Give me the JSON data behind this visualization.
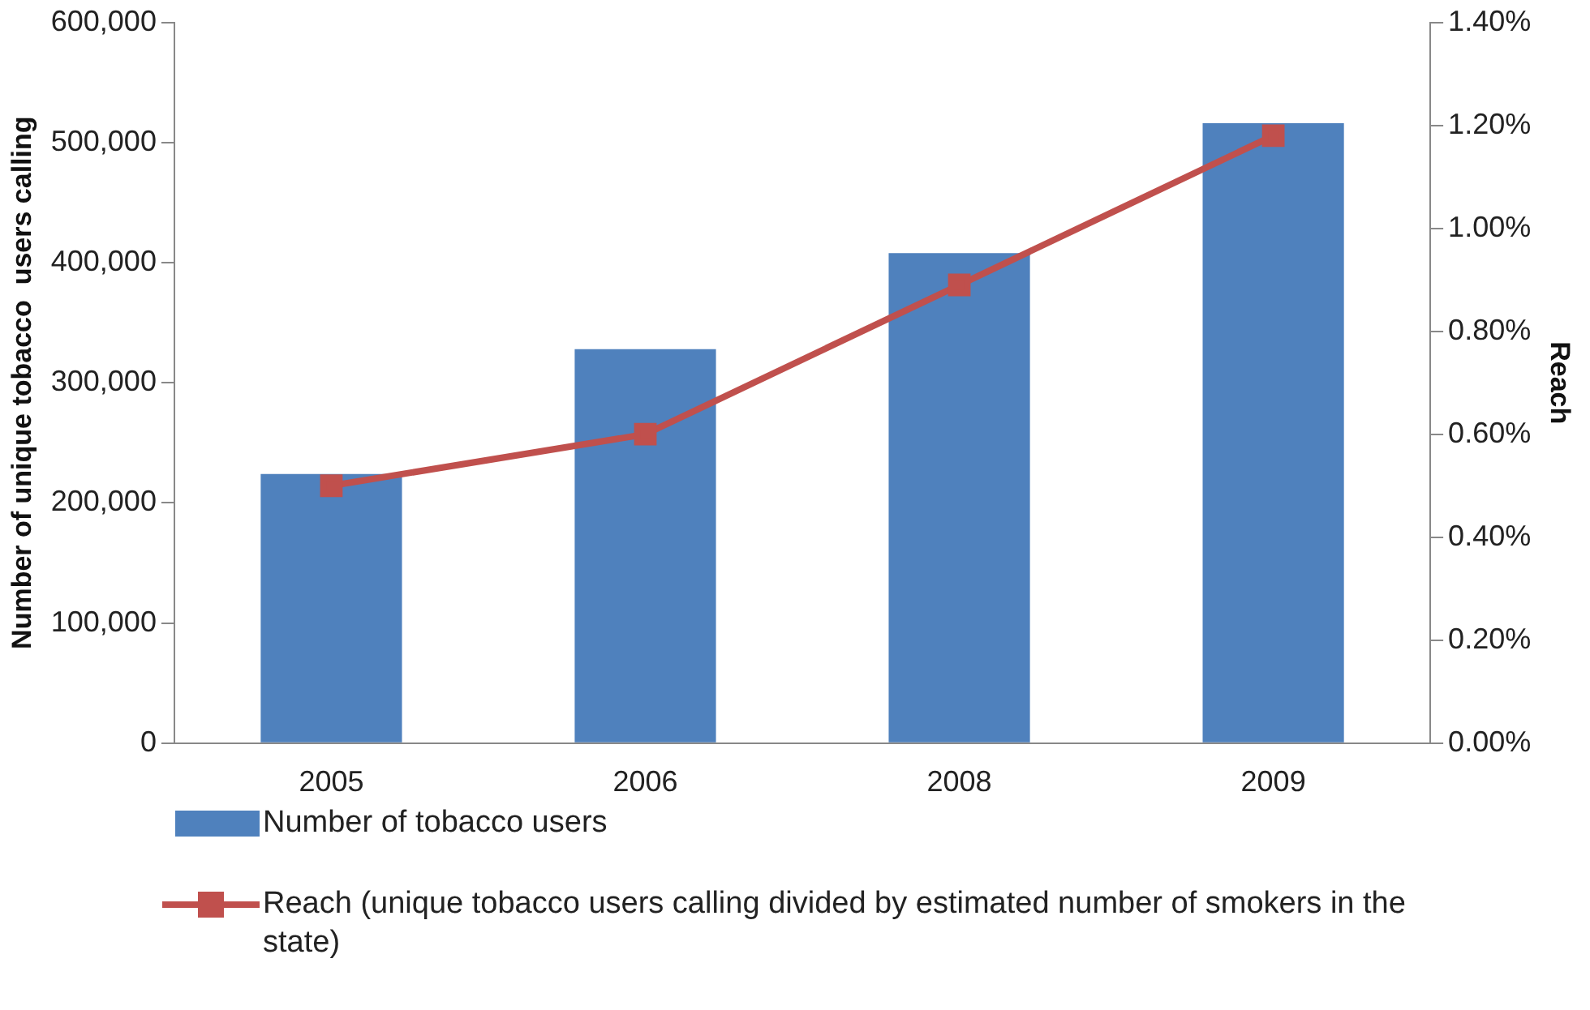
{
  "chart_data": {
    "type": "bar",
    "categories": [
      "2005",
      "2006",
      "2008",
      "2009"
    ],
    "ylabel": "Number of unique tobacco  users calling",
    "y2label": "Reach",
    "ylim": [
      0,
      600000
    ],
    "yticks": [
      0,
      {
        "value": 100000,
        "label": "100,000"
      },
      {
        "value": 200000,
        "label": "200,000"
      },
      {
        "value": 300000,
        "label": "300,000"
      },
      {
        "value": 400000,
        "label": "400,000"
      },
      {
        "value": 500000,
        "label": "500,000"
      },
      {
        "value": 600000,
        "label": "600,000"
      }
    ],
    "y2lim": [
      0,
      1.4
    ],
    "y2ticks": [
      {
        "value": 0,
        "label": "0.00%"
      },
      {
        "value": 0.2,
        "label": "0.20%"
      },
      {
        "value": 0.4,
        "label": "0.40%"
      },
      {
        "value": 0.6,
        "label": "0.60%"
      },
      {
        "value": 0.8,
        "label": "0.80%"
      },
      {
        "value": 1.0,
        "label": "1.00%"
      },
      {
        "value": 1.2,
        "label": "1.20%"
      },
      {
        "value": 1.4,
        "label": "1.40%"
      }
    ],
    "series": [
      {
        "name": "Number of tobacco users",
        "color": "#4f81bd",
        "values": [
          224000,
          328000,
          408000,
          516000
        ]
      },
      {
        "name": "Reach (unique tobacco users calling divided by estimated  number of smokers in the state)",
        "type": "line",
        "axis": "y2",
        "color": "#c0504d",
        "marker": "square",
        "values": [
          0.5,
          0.6,
          0.89,
          1.18
        ]
      }
    ],
    "grid": false,
    "legend": "bottom"
  }
}
